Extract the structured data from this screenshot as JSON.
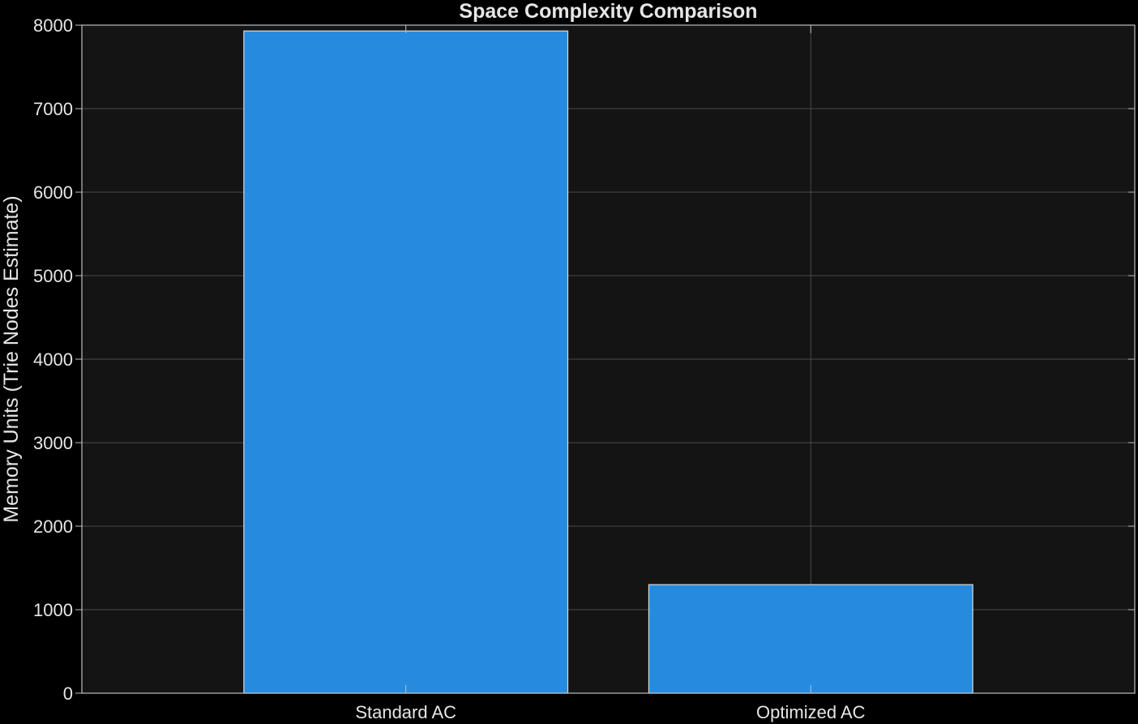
{
  "chart_data": {
    "type": "bar",
    "title": "Space Complexity Comparison",
    "xlabel": "",
    "ylabel": "Memory Units (Trie Nodes Estimate)",
    "categories": [
      "Standard AC",
      "Optimized AC"
    ],
    "values": [
      7930,
      1300
    ],
    "ylim": [
      0,
      8000
    ],
    "yticks": [
      0,
      1000,
      2000,
      3000,
      4000,
      5000,
      6000,
      7000,
      8000
    ],
    "grid": true,
    "legend": "none"
  },
  "colors": {
    "background": "#000000",
    "plot_background": "#141414",
    "bar_fill": "#268bdf",
    "bar_edge": "#d9d9d9",
    "grid": "#4a4a4a",
    "axis": "#bfbfbf",
    "text": "#e6e6e6"
  }
}
